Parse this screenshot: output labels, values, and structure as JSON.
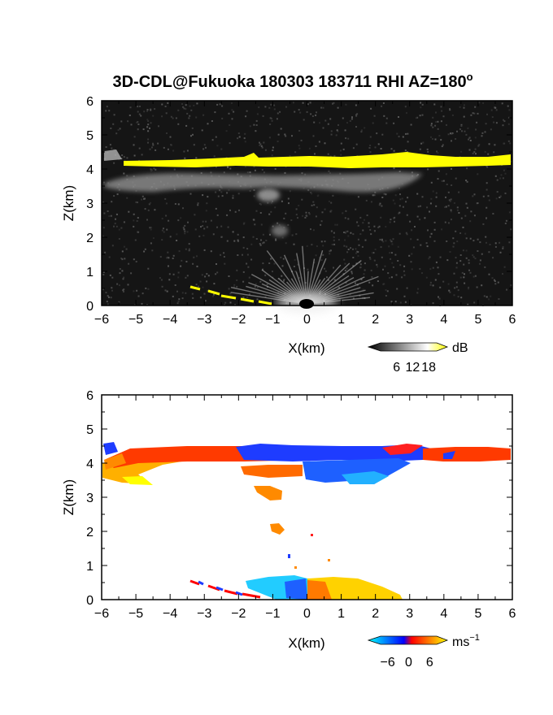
{
  "figure": {
    "title_main": "3D-CDL@Fukuoka 180303 183711 RHI AZ=180",
    "title_sup": "o"
  },
  "chart_data": [
    {
      "type": "heatmap",
      "quantity": "reflectivity",
      "xlabel": "X(km)",
      "ylabel": "Z(km)",
      "xlim": [
        -6,
        6
      ],
      "ylim": [
        0,
        6
      ],
      "xticks": [
        "−6",
        "−5",
        "−4",
        "−3",
        "−2",
        "−1",
        "0",
        "1",
        "2",
        "3",
        "4",
        "5",
        "6"
      ],
      "yticks": [
        "0",
        "1",
        "2",
        "3",
        "4",
        "5",
        "6"
      ],
      "background": "#151515",
      "colorbar": {
        "unit": "dB",
        "ticks": [
          "6",
          "12",
          "18"
        ],
        "range": [
          0,
          21
        ],
        "colors": [
          "#000000",
          "#ffffff",
          "#ffff00"
        ]
      },
      "regions": [
        {
          "name": "cloud base layer",
          "x": [
            -5.4,
            6.0
          ],
          "z_center": 4.25,
          "thickness_km": 0.2,
          "value_db": 20,
          "color": "#ffff00"
        },
        {
          "name": "layer below cloud base",
          "x": [
            -6.0,
            3.5
          ],
          "z_range": [
            3.5,
            4.1
          ],
          "value_db": 9
        },
        {
          "name": "precipitation streak upper",
          "x_center": -1.0,
          "z_center": 3.2,
          "value_db": 8
        },
        {
          "name": "precipitation streak lower",
          "x_center": -0.8,
          "z_center": 2.2,
          "value_db": 6
        },
        {
          "name": "near-field clutter",
          "x": [
            -1.5,
            1.5
          ],
          "z_range": [
            0,
            0.6
          ],
          "value_db": 10
        },
        {
          "name": "ground clutter line",
          "x": [
            -3.4,
            -1.0
          ],
          "z": [
            0.5,
            0.0
          ],
          "value_db": 20,
          "color": "#ffff00"
        }
      ]
    },
    {
      "type": "heatmap",
      "quantity": "radial velocity",
      "xlabel": "X(km)",
      "ylabel": "Z(km)",
      "xlim": [
        -6,
        6
      ],
      "ylim": [
        0,
        6
      ],
      "xticks": [
        "−6",
        "−5",
        "−4",
        "−3",
        "−2",
        "−1",
        "0",
        "1",
        "2",
        "3",
        "4",
        "5",
        "6"
      ],
      "yticks": [
        "0",
        "1",
        "2",
        "3",
        "4",
        "5",
        "6"
      ],
      "background": "#ffffff",
      "colorbar": {
        "unit": "ms",
        "unit_sup": "−1",
        "ticks": [
          "−6",
          "0",
          "6"
        ],
        "range": [
          -8,
          8
        ],
        "colors": [
          "#00ffff",
          "#0000ff",
          "#ff0000",
          "#ffff00"
        ]
      },
      "regions": [
        {
          "name": "cloud base layer west",
          "x": [
            -5.5,
            0.0
          ],
          "z_center": 4.3,
          "velocity_ms": 2,
          "color": "#ff3300"
        },
        {
          "name": "cloud base layer center",
          "x": [
            -1.5,
            3.5
          ],
          "z_center": 4.3,
          "velocity_ms": -3,
          "color": "#1e3cff"
        },
        {
          "name": "cloud base layer east",
          "x": [
            3.5,
            6.0
          ],
          "z_center": 4.3,
          "velocity_ms": 3,
          "color": "#ff3300"
        },
        {
          "name": "sub-cloud layer west",
          "x": [
            -6.0,
            -3.5
          ],
          "z_range": [
            3.4,
            4.1
          ],
          "velocity_ms": 7,
          "color": "#ffb000"
        },
        {
          "name": "sub-cloud layer center",
          "x": [
            -2.0,
            0.0
          ],
          "z_range": [
            3.6,
            3.9
          ],
          "velocity_ms": 4,
          "color": "#ff6a00"
        },
        {
          "name": "sub-cloud layer east",
          "x": [
            0.0,
            3.0
          ],
          "z_range": [
            3.4,
            4.1
          ],
          "velocity_ms": -6,
          "color": "#1ea0ff"
        },
        {
          "name": "precipitation streak upper",
          "x_center": -1.0,
          "z_center": 3.0,
          "velocity_ms": 5,
          "color": "#ff8a00"
        },
        {
          "name": "precipitation streak lower",
          "x_center": -0.8,
          "z_center": 2.05,
          "velocity_ms": 5,
          "color": "#ff8a00"
        },
        {
          "name": "near-field approaching",
          "x": [
            -1.5,
            0.0
          ],
          "z_range": [
            0.0,
            0.6
          ],
          "velocity_ms": -6,
          "color": "#22ccff"
        },
        {
          "name": "near-field receding",
          "x": [
            0.0,
            2.8
          ],
          "z_range": [
            0.0,
            0.6
          ],
          "velocity_ms": 6,
          "color": "#ffd200"
        },
        {
          "name": "ground clutter line",
          "x": [
            -3.4,
            -1.2
          ],
          "z": [
            0.5,
            0.05
          ],
          "velocity_ms": 0,
          "color": "#ff0000"
        }
      ]
    }
  ]
}
